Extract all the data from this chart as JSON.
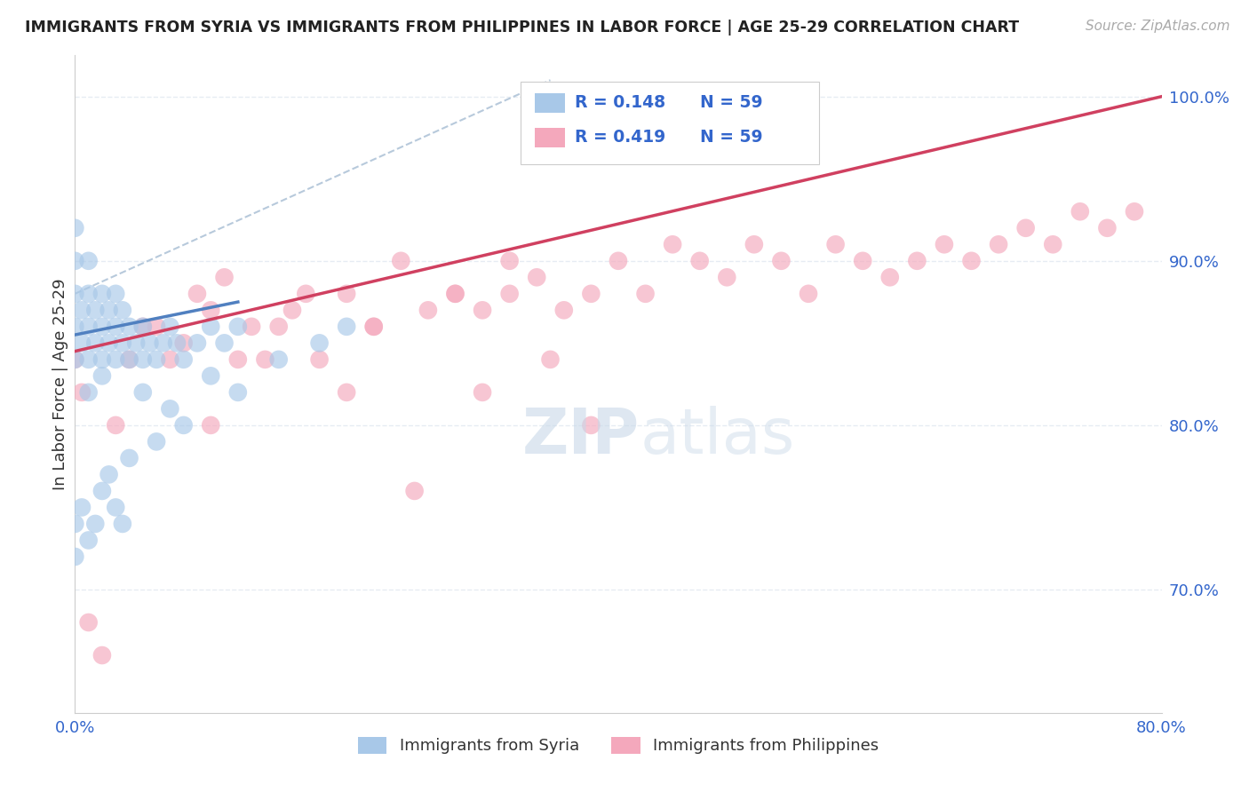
{
  "title": "IMMIGRANTS FROM SYRIA VS IMMIGRANTS FROM PHILIPPINES IN LABOR FORCE | AGE 25-29 CORRELATION CHART",
  "source": "Source: ZipAtlas.com",
  "ylabel": "In Labor Force | Age 25-29",
  "xlim": [
    0.0,
    0.8
  ],
  "ylim": [
    0.625,
    1.025
  ],
  "xtick_vals": [
    0.0,
    0.1,
    0.2,
    0.3,
    0.4,
    0.5,
    0.6,
    0.7,
    0.8
  ],
  "xticklabels": [
    "0.0%",
    "",
    "",
    "",
    "",
    "",
    "",
    "",
    "80.0%"
  ],
  "ytick_vals": [
    0.7,
    0.8,
    0.9,
    1.0
  ],
  "yticklabels_right": [
    "70.0%",
    "80.0%",
    "90.0%",
    "100.0%"
  ],
  "legend_r_syria": "R = 0.148",
  "legend_n_syria": "N = 59",
  "legend_r_phil": "R = 0.419",
  "legend_n_phil": "N = 59",
  "syria_color": "#a8c8e8",
  "phil_color": "#f4a8bc",
  "syria_line_color": "#5080c0",
  "phil_line_color": "#d04060",
  "diag_line_color": "#b0c4d8",
  "watermark_color": "#c8d8e8",
  "background_color": "#ffffff",
  "grid_color": "#e0e8f0",
  "syria_x": [
    0.0,
    0.0,
    0.0,
    0.0,
    0.0,
    0.005,
    0.005,
    0.01,
    0.01,
    0.01,
    0.01,
    0.01,
    0.015,
    0.015,
    0.02,
    0.02,
    0.02,
    0.02,
    0.025,
    0.025,
    0.03,
    0.03,
    0.03,
    0.035,
    0.035,
    0.04,
    0.04,
    0.045,
    0.05,
    0.05,
    0.055,
    0.06,
    0.065,
    0.07,
    0.075,
    0.08,
    0.09,
    0.1,
    0.11,
    0.12,
    0.0,
    0.0,
    0.005,
    0.01,
    0.015,
    0.02,
    0.025,
    0.03,
    0.035,
    0.04,
    0.05,
    0.06,
    0.07,
    0.08,
    0.1,
    0.12,
    0.15,
    0.18,
    0.2
  ],
  "syria_y": [
    0.86,
    0.88,
    0.9,
    0.92,
    0.84,
    0.85,
    0.87,
    0.86,
    0.88,
    0.84,
    0.82,
    0.9,
    0.85,
    0.87,
    0.84,
    0.86,
    0.88,
    0.83,
    0.85,
    0.87,
    0.84,
    0.86,
    0.88,
    0.85,
    0.87,
    0.84,
    0.86,
    0.85,
    0.84,
    0.86,
    0.85,
    0.84,
    0.85,
    0.86,
    0.85,
    0.84,
    0.85,
    0.86,
    0.85,
    0.86,
    0.74,
    0.72,
    0.75,
    0.73,
    0.74,
    0.76,
    0.77,
    0.75,
    0.74,
    0.78,
    0.82,
    0.79,
    0.81,
    0.8,
    0.83,
    0.82,
    0.84,
    0.85,
    0.86
  ],
  "phil_x": [
    0.0,
    0.005,
    0.01,
    0.02,
    0.03,
    0.04,
    0.05,
    0.06,
    0.07,
    0.08,
    0.09,
    0.1,
    0.11,
    0.12,
    0.13,
    0.14,
    0.15,
    0.16,
    0.17,
    0.18,
    0.2,
    0.22,
    0.24,
    0.26,
    0.28,
    0.3,
    0.32,
    0.34,
    0.36,
    0.38,
    0.4,
    0.42,
    0.44,
    0.46,
    0.48,
    0.5,
    0.52,
    0.54,
    0.56,
    0.58,
    0.6,
    0.62,
    0.64,
    0.66,
    0.68,
    0.7,
    0.72,
    0.74,
    0.76,
    0.78,
    0.1,
    0.2,
    0.25,
    0.3,
    0.35,
    0.38,
    0.22,
    0.28,
    0.32
  ],
  "phil_y": [
    0.84,
    0.82,
    0.68,
    0.66,
    0.8,
    0.84,
    0.86,
    0.86,
    0.84,
    0.85,
    0.88,
    0.87,
    0.89,
    0.84,
    0.86,
    0.84,
    0.86,
    0.87,
    0.88,
    0.84,
    0.88,
    0.86,
    0.9,
    0.87,
    0.88,
    0.87,
    0.88,
    0.89,
    0.87,
    0.88,
    0.9,
    0.88,
    0.91,
    0.9,
    0.89,
    0.91,
    0.9,
    0.88,
    0.91,
    0.9,
    0.89,
    0.9,
    0.91,
    0.9,
    0.91,
    0.92,
    0.91,
    0.93,
    0.92,
    0.93,
    0.8,
    0.82,
    0.76,
    0.82,
    0.84,
    0.8,
    0.86,
    0.88,
    0.9
  ]
}
